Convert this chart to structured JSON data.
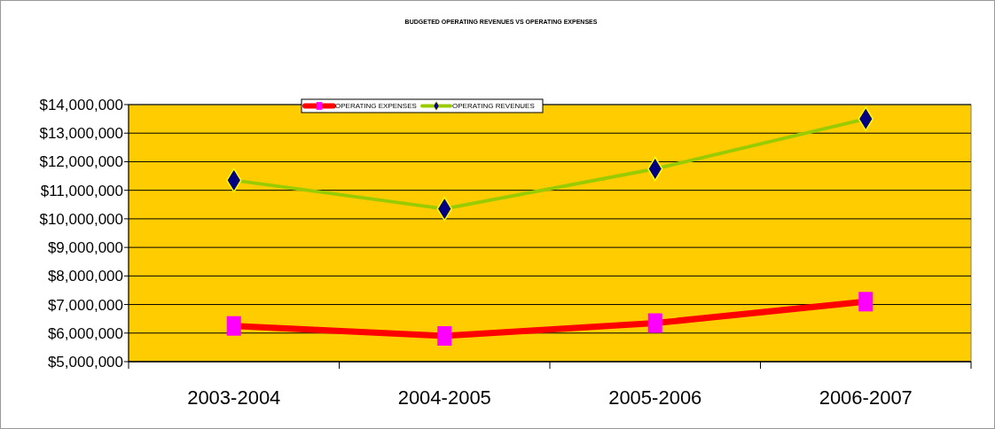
{
  "chart_data": {
    "type": "line",
    "title": "BUDGETED OPERATING REVENUES VS OPERATING EXPENSES",
    "categories": [
      "2003-2004",
      "2004-2005",
      "2005-2006",
      "2006-2007"
    ],
    "series": [
      {
        "name": "OPERATING EXPENSES",
        "color": "#ff0000",
        "marker": "square",
        "values": [
          6250000,
          5900000,
          6350000,
          7100000
        ]
      },
      {
        "name": "OPERATING REVENUES",
        "color": "#99cc00",
        "marker": "diamond",
        "values": [
          11350000,
          10350000,
          11750000,
          13500000
        ]
      }
    ],
    "ylim": [
      5000000,
      14000000
    ],
    "yticks": [
      {
        "value": 5000000,
        "label": "$5,000,000"
      },
      {
        "value": 6000000,
        "label": "$6,000,000"
      },
      {
        "value": 7000000,
        "label": "$7,000,000"
      },
      {
        "value": 8000000,
        "label": "$8,000,000"
      },
      {
        "value": 9000000,
        "label": "$9,000,000"
      },
      {
        "value": 10000000,
        "label": "$10,000,000"
      },
      {
        "value": 11000000,
        "label": "$11,000,000"
      },
      {
        "value": 12000000,
        "label": "$12,000,000"
      },
      {
        "value": 13000000,
        "label": "$13,000,000"
      },
      {
        "value": 14000000,
        "label": "$14,000,000"
      }
    ],
    "grid": "y",
    "legend": "top left",
    "line_style": "solid"
  }
}
